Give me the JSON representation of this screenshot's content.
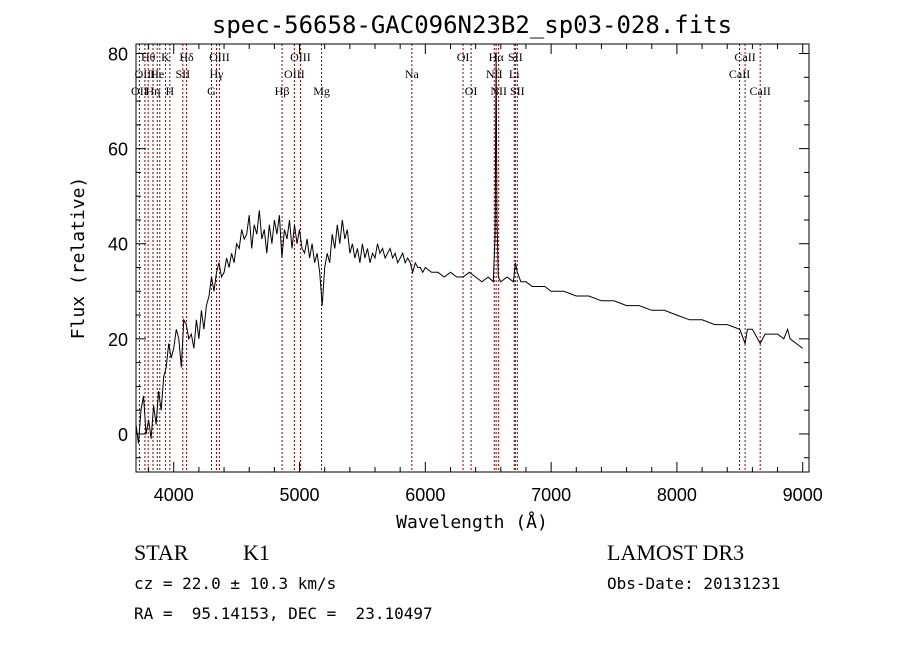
{
  "chart_data": {
    "type": "line",
    "title": "spec-56658-GAC096N23B2_sp03-028.fits",
    "xlabel": "Wavelength (Å)",
    "ylabel": "Flux (relative)",
    "xlim": [
      3700,
      9050
    ],
    "ylim": [
      -8,
      82
    ],
    "xticks": [
      4000,
      5000,
      6000,
      7000,
      8000,
      9000
    ],
    "yticks": [
      0,
      20,
      40,
      60,
      80
    ],
    "grid": false,
    "line_color": "#000000",
    "marker_color": "#8b0000",
    "spectrum": [
      [
        3700,
        2
      ],
      [
        3720,
        -2
      ],
      [
        3740,
        5
      ],
      [
        3760,
        8
      ],
      [
        3780,
        0
      ],
      [
        3800,
        3
      ],
      [
        3820,
        -1
      ],
      [
        3840,
        6
      ],
      [
        3860,
        2
      ],
      [
        3880,
        9
      ],
      [
        3900,
        5
      ],
      [
        3920,
        12
      ],
      [
        3940,
        14
      ],
      [
        3960,
        19
      ],
      [
        3980,
        16
      ],
      [
        4000,
        18
      ],
      [
        4020,
        22
      ],
      [
        4040,
        20
      ],
      [
        4060,
        14
      ],
      [
        4080,
        24
      ],
      [
        4100,
        23
      ],
      [
        4120,
        20
      ],
      [
        4140,
        21
      ],
      [
        4160,
        18
      ],
      [
        4180,
        24
      ],
      [
        4200,
        20
      ],
      [
        4220,
        26
      ],
      [
        4240,
        22
      ],
      [
        4260,
        27
      ],
      [
        4280,
        29
      ],
      [
        4300,
        33
      ],
      [
        4320,
        30
      ],
      [
        4340,
        34
      ],
      [
        4360,
        36
      ],
      [
        4380,
        33
      ],
      [
        4400,
        34
      ],
      [
        4420,
        37
      ],
      [
        4440,
        35
      ],
      [
        4460,
        38
      ],
      [
        4480,
        36
      ],
      [
        4500,
        40
      ],
      [
        4520,
        39
      ],
      [
        4540,
        43
      ],
      [
        4560,
        41
      ],
      [
        4580,
        42
      ],
      [
        4600,
        46
      ],
      [
        4620,
        39
      ],
      [
        4640,
        44
      ],
      [
        4660,
        42
      ],
      [
        4680,
        47
      ],
      [
        4700,
        41
      ],
      [
        4720,
        43
      ],
      [
        4740,
        38
      ],
      [
        4760,
        44
      ],
      [
        4780,
        40
      ],
      [
        4800,
        45
      ],
      [
        4820,
        42
      ],
      [
        4840,
        46
      ],
      [
        4860,
        37
      ],
      [
        4880,
        43
      ],
      [
        4900,
        41
      ],
      [
        4920,
        45
      ],
      [
        4940,
        39
      ],
      [
        4960,
        44
      ],
      [
        4980,
        40
      ],
      [
        5000,
        43
      ],
      [
        5020,
        39
      ],
      [
        5040,
        38
      ],
      [
        5060,
        41
      ],
      [
        5080,
        37
      ],
      [
        5100,
        40
      ],
      [
        5120,
        36
      ],
      [
        5140,
        38
      ],
      [
        5160,
        34
      ],
      [
        5180,
        27
      ],
      [
        5200,
        35
      ],
      [
        5220,
        38
      ],
      [
        5240,
        36
      ],
      [
        5260,
        42
      ],
      [
        5280,
        39
      ],
      [
        5300,
        44
      ],
      [
        5320,
        40
      ],
      [
        5340,
        45
      ],
      [
        5360,
        41
      ],
      [
        5380,
        43
      ],
      [
        5400,
        38
      ],
      [
        5420,
        40
      ],
      [
        5440,
        37
      ],
      [
        5460,
        39
      ],
      [
        5480,
        36
      ],
      [
        5500,
        40
      ],
      [
        5520,
        37
      ],
      [
        5540,
        39
      ],
      [
        5560,
        36
      ],
      [
        5580,
        38
      ],
      [
        5600,
        37
      ],
      [
        5620,
        40
      ],
      [
        5640,
        38
      ],
      [
        5660,
        39
      ],
      [
        5680,
        37
      ],
      [
        5700,
        38
      ],
      [
        5720,
        39
      ],
      [
        5740,
        37
      ],
      [
        5760,
        38
      ],
      [
        5780,
        36
      ],
      [
        5800,
        37
      ],
      [
        5820,
        38
      ],
      [
        5840,
        36
      ],
      [
        5860,
        37
      ],
      [
        5880,
        36
      ],
      [
        5900,
        34
      ],
      [
        5920,
        36
      ],
      [
        5940,
        35
      ],
      [
        5960,
        35
      ],
      [
        5980,
        34
      ],
      [
        6000,
        35
      ],
      [
        6050,
        34
      ],
      [
        6100,
        34
      ],
      [
        6150,
        33
      ],
      [
        6200,
        34
      ],
      [
        6250,
        33
      ],
      [
        6300,
        33
      ],
      [
        6350,
        34
      ],
      [
        6400,
        33
      ],
      [
        6450,
        32
      ],
      [
        6500,
        33
      ],
      [
        6540,
        32
      ],
      [
        6555,
        42
      ],
      [
        6563,
        80
      ],
      [
        6570,
        45
      ],
      [
        6580,
        33
      ],
      [
        6600,
        32
      ],
      [
        6650,
        33
      ],
      [
        6700,
        32
      ],
      [
        6716,
        36
      ],
      [
        6731,
        34
      ],
      [
        6760,
        32
      ],
      [
        6800,
        32
      ],
      [
        6850,
        31
      ],
      [
        6900,
        31
      ],
      [
        6950,
        31
      ],
      [
        7000,
        30
      ],
      [
        7100,
        30
      ],
      [
        7200,
        29
      ],
      [
        7300,
        29
      ],
      [
        7400,
        28
      ],
      [
        7500,
        28
      ],
      [
        7600,
        27
      ],
      [
        7700,
        27
      ],
      [
        7800,
        26
      ],
      [
        7900,
        26
      ],
      [
        8000,
        25
      ],
      [
        8100,
        24
      ],
      [
        8200,
        24
      ],
      [
        8300,
        23
      ],
      [
        8400,
        23
      ],
      [
        8500,
        22
      ],
      [
        8542,
        19
      ],
      [
        8560,
        22
      ],
      [
        8600,
        22
      ],
      [
        8662,
        19
      ],
      [
        8700,
        21
      ],
      [
        8800,
        21
      ],
      [
        8850,
        20
      ],
      [
        8880,
        22
      ],
      [
        8900,
        20
      ],
      [
        8950,
        19
      ],
      [
        9000,
        18
      ]
    ],
    "lines": [
      {
        "wl": 3727,
        "label": "OII",
        "row": 2
      },
      {
        "wl": 3771,
        "label": "OIII",
        "row": 1
      },
      {
        "wl": 3797,
        "label": "Hθ",
        "row": 0
      },
      {
        "wl": 3835,
        "label": "Hη",
        "row": 2
      },
      {
        "wl": 3869,
        "label": "He",
        "row": 1
      },
      {
        "wl": 3889,
        "label": "",
        "row": 2
      },
      {
        "wl": 3934,
        "label": "K",
        "row": 0
      },
      {
        "wl": 3969,
        "label": "H",
        "row": 2
      },
      {
        "wl": 4072,
        "label": "SII",
        "row": 1
      },
      {
        "wl": 4102,
        "label": "Hδ",
        "row": 0
      },
      {
        "wl": 4300,
        "label": "G",
        "row": 2
      },
      {
        "wl": 4340,
        "label": "Hγ",
        "row": 1
      },
      {
        "wl": 4363,
        "label": "OIII",
        "row": 0
      },
      {
        "wl": 4861,
        "label": "Hβ",
        "row": 2
      },
      {
        "wl": 4959,
        "label": "OIII",
        "row": 1
      },
      {
        "wl": 5007,
        "label": "OIII",
        "row": 0
      },
      {
        "wl": 5175,
        "label": "Mg",
        "row": 2
      },
      {
        "wl": 5893,
        "label": "Na",
        "row": 1
      },
      {
        "wl": 6300,
        "label": "OI",
        "row": 0
      },
      {
        "wl": 6364,
        "label": "OI",
        "row": 2
      },
      {
        "wl": 6548,
        "label": "NII",
        "row": 1
      },
      {
        "wl": 6563,
        "label": "Hα",
        "row": 0
      },
      {
        "wl": 6583,
        "label": "NII",
        "row": 2
      },
      {
        "wl": 6707,
        "label": "Li",
        "row": 1
      },
      {
        "wl": 6716,
        "label": "SII",
        "row": 0
      },
      {
        "wl": 6731,
        "label": "SII",
        "row": 2
      },
      {
        "wl": 8498,
        "label": "CaII",
        "row": 1
      },
      {
        "wl": 8542,
        "label": "CaII",
        "row": 0
      },
      {
        "wl": 8662,
        "label": "CaII",
        "row": 2
      }
    ]
  },
  "info": {
    "class": "STAR",
    "subclass": "K1",
    "survey": "LAMOST DR3",
    "cz": "cz = 22.0 ± 10.3 km/s",
    "obs_date": "Obs-Date: 20131231",
    "radec": "RA =  95.14153, DEC =  23.10497"
  }
}
